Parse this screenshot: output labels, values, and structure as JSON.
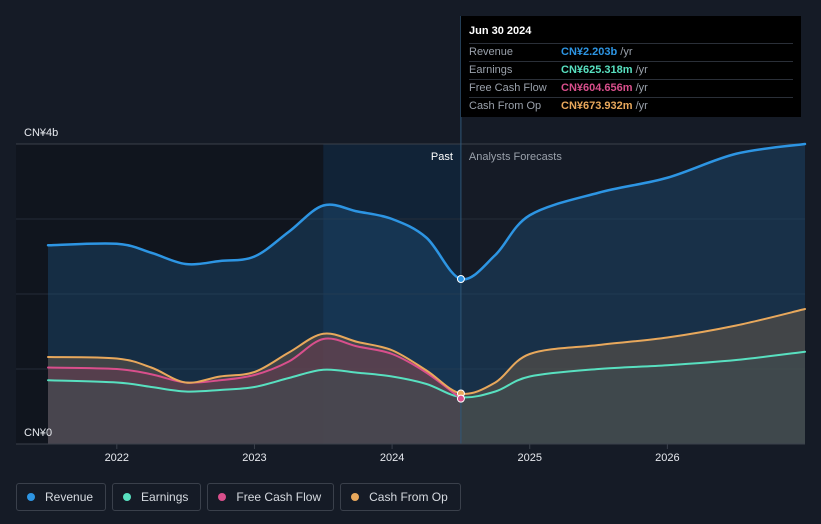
{
  "chart_data": {
    "type": "area",
    "y_unit_label_top": "CN¥4b",
    "y_unit_label_bottom": "CN¥0",
    "ylim": [
      0,
      4.0
    ],
    "xlim": [
      2021.5,
      2027.0
    ],
    "x_ticks": [
      {
        "value": 2022.0,
        "label": "2022"
      },
      {
        "value": 2023.0,
        "label": "2023"
      },
      {
        "value": 2024.0,
        "label": "2024"
      },
      {
        "value": 2025.0,
        "label": "2025"
      },
      {
        "value": 2026.0,
        "label": "2026"
      }
    ],
    "divider_x": 2024.5,
    "highlight_start_x": 2023.5,
    "past_label": "Past",
    "forecast_label": "Analysts Forecasts",
    "series": [
      {
        "name": "Revenue",
        "color": "#2d95e3",
        "x": [
          2021.5,
          2022.0,
          2022.25,
          2022.5,
          2022.75,
          2023.0,
          2023.25,
          2023.5,
          2023.75,
          2024.0,
          2024.25,
          2024.5,
          2024.75,
          2025.0,
          2025.5,
          2026.0,
          2026.5,
          2027.0
        ],
        "y": [
          2.65,
          2.67,
          2.55,
          2.4,
          2.44,
          2.5,
          2.83,
          3.18,
          3.1,
          3.0,
          2.75,
          2.2,
          2.52,
          3.05,
          3.35,
          3.55,
          3.87,
          4.0
        ]
      },
      {
        "name": "Earnings",
        "color": "#58e0c0",
        "x": [
          2021.5,
          2022.0,
          2022.25,
          2022.5,
          2022.75,
          2023.0,
          2023.25,
          2023.5,
          2023.75,
          2024.0,
          2024.25,
          2024.5,
          2024.75,
          2025.0,
          2025.5,
          2026.0,
          2026.5,
          2027.0
        ],
        "y": [
          0.85,
          0.82,
          0.76,
          0.7,
          0.72,
          0.76,
          0.88,
          0.99,
          0.95,
          0.9,
          0.8,
          0.625,
          0.7,
          0.9,
          1.0,
          1.05,
          1.12,
          1.23
        ]
      },
      {
        "name": "Free Cash Flow",
        "color": "#d94f8c",
        "x": [
          2021.5,
          2022.0,
          2022.25,
          2022.5,
          2022.75,
          2023.0,
          2023.25,
          2023.5,
          2023.75,
          2024.0,
          2024.25,
          2024.5
        ],
        "y": [
          1.02,
          1.0,
          0.93,
          0.82,
          0.85,
          0.92,
          1.1,
          1.4,
          1.3,
          1.2,
          0.95,
          0.605
        ]
      },
      {
        "name": "Cash From Op",
        "color": "#e8a85c",
        "x": [
          2021.5,
          2022.0,
          2022.25,
          2022.5,
          2022.75,
          2023.0,
          2023.25,
          2023.5,
          2023.75,
          2024.0,
          2024.25,
          2024.5,
          2024.75,
          2025.0,
          2025.5,
          2026.0,
          2026.5,
          2027.0
        ],
        "y": [
          1.16,
          1.14,
          1.02,
          0.82,
          0.9,
          0.96,
          1.22,
          1.47,
          1.36,
          1.25,
          0.98,
          0.674,
          0.82,
          1.2,
          1.32,
          1.42,
          1.58,
          1.8
        ]
      }
    ],
    "tooltip": {
      "date": "Jun 30 2024",
      "rows": [
        {
          "label": "Revenue",
          "value": "CN¥2.203b",
          "unit": "/yr",
          "color": "#2d95e3"
        },
        {
          "label": "Earnings",
          "value": "CN¥625.318m",
          "unit": "/yr",
          "color": "#58e0c0"
        },
        {
          "label": "Free Cash Flow",
          "value": "CN¥604.656m",
          "unit": "/yr",
          "color": "#d94f8c"
        },
        {
          "label": "Cash From Op",
          "value": "CN¥673.932m",
          "unit": "/yr",
          "color": "#e8a85c"
        }
      ]
    }
  },
  "legend": {
    "items": [
      {
        "label": "Revenue",
        "color": "#2d95e3"
      },
      {
        "label": "Earnings",
        "color": "#58e0c0"
      },
      {
        "label": "Free Cash Flow",
        "color": "#d94f8c"
      },
      {
        "label": "Cash From Op",
        "color": "#e8a85c"
      }
    ]
  }
}
